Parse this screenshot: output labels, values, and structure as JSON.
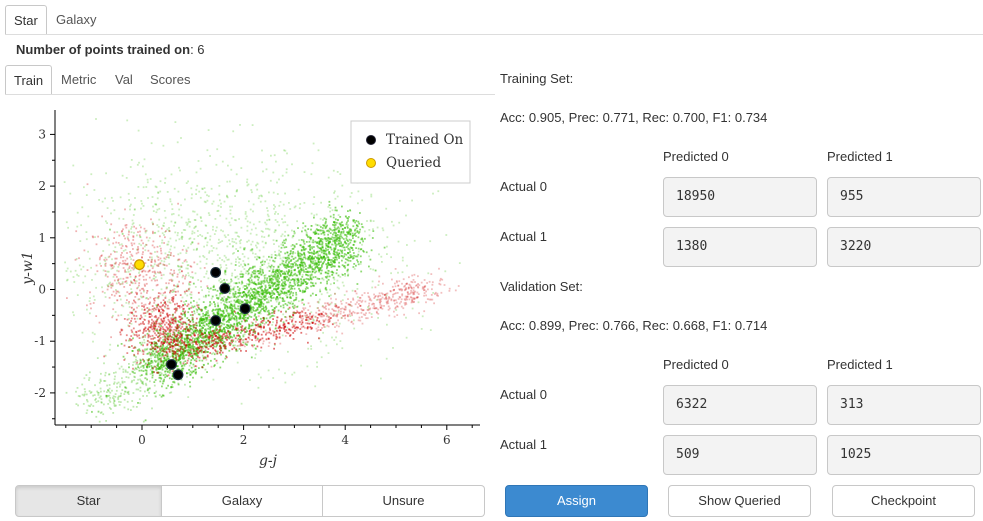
{
  "top_tabs": [
    {
      "label": "Star",
      "active": true
    },
    {
      "label": "Galaxy",
      "active": false
    }
  ],
  "summary": {
    "label": "Number of points trained on",
    "value": ": 6"
  },
  "inner_tabs": [
    {
      "label": "Train",
      "active": true
    },
    {
      "label": "Metric",
      "active": false
    },
    {
      "label": "Val",
      "active": false
    },
    {
      "label": "Scores",
      "active": false
    }
  ],
  "chart_data": {
    "type": "scatter",
    "xlabel": "g-j",
    "ylabel": "y-w1",
    "xlim": [
      -1.6,
      6.6
    ],
    "ylim": [
      -2.6,
      3.4
    ],
    "xticks": [
      "0",
      "2",
      "4",
      "6"
    ],
    "yticks": [
      "-2",
      "-1",
      "0",
      "1",
      "2",
      "3"
    ],
    "legend_position": "top-right",
    "legend": [
      {
        "label": "Trained On",
        "color": "#000000"
      },
      {
        "label": "Queried",
        "color": "#ffdd00"
      }
    ],
    "series": [
      {
        "name": "Trained On",
        "points": [
          [
            1.45,
            0.33
          ],
          [
            1.63,
            0.02
          ],
          [
            1.45,
            -0.6
          ],
          [
            2.03,
            -0.37
          ],
          [
            0.58,
            -1.45
          ],
          [
            0.71,
            -1.65
          ]
        ]
      },
      {
        "name": "Queried",
        "points": [
          [
            -0.05,
            0.48
          ]
        ]
      }
    ],
    "colors": {
      "class_0": "#33bb00",
      "class_1": "#cc0000"
    }
  },
  "training": {
    "title": "Training Set:",
    "metrics": "Acc: 0.905, Prec: 0.771, Rec: 0.700, F1: 0.734",
    "col_headers": [
      "Predicted 0",
      "Predicted 1"
    ],
    "rows": [
      {
        "label": "Actual 0",
        "values": [
          "18950",
          "955"
        ]
      },
      {
        "label": "Actual 1",
        "values": [
          "1380",
          "3220"
        ]
      }
    ]
  },
  "validation": {
    "title": "Validation Set:",
    "metrics": "Acc: 0.899, Prec: 0.766, Rec: 0.668, F1: 0.714",
    "col_headers": [
      "Predicted 0",
      "Predicted 1"
    ],
    "rows": [
      {
        "label": "Actual 0",
        "values": [
          "6322",
          "313"
        ]
      },
      {
        "label": "Actual 1",
        "values": [
          "509",
          "1025"
        ]
      }
    ]
  },
  "label_buttons": [
    {
      "label": "Star",
      "selected": true
    },
    {
      "label": "Galaxy",
      "selected": false
    },
    {
      "label": "Unsure",
      "selected": false
    }
  ],
  "action_buttons": {
    "assign": "Assign",
    "show_queried": "Show Queried",
    "checkpoint": "Checkpoint"
  }
}
